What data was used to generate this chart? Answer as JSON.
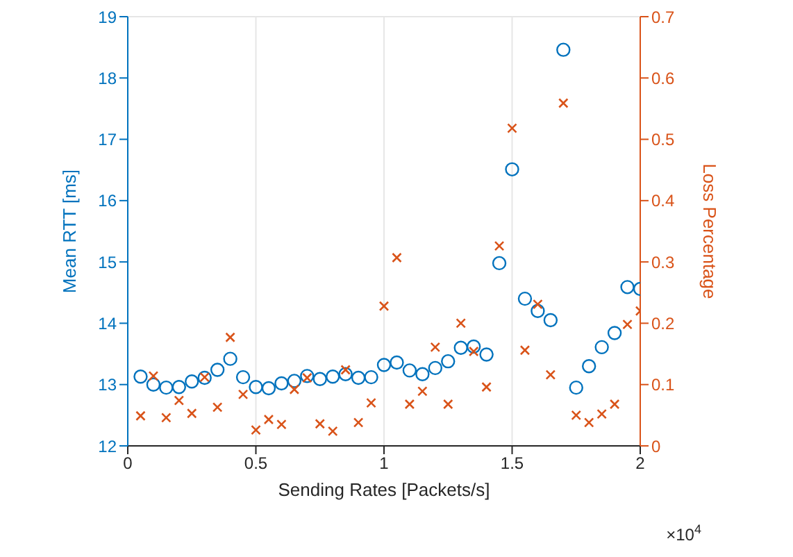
{
  "chart_data": {
    "type": "scatter",
    "xlabel": "Sending Rates [Packets/s]",
    "ylabel": "Mean RTT [ms]",
    "y2label": "Loss Percentage",
    "annotations": [
      "×10$^{4}$"
    ],
    "x": [
      0.05,
      0.1,
      0.15,
      0.2,
      0.25,
      0.3,
      0.35,
      0.4,
      0.45,
      0.5,
      0.55,
      0.6,
      0.65,
      0.7,
      0.75,
      0.8,
      0.85,
      0.9,
      0.95,
      1.0,
      1.05,
      1.1,
      1.15,
      1.2,
      1.25,
      1.3,
      1.35,
      1.4,
      1.45,
      1.5,
      1.55,
      1.6,
      1.65,
      1.7,
      1.75,
      1.8,
      1.85,
      1.9,
      1.95,
      2.0
    ],
    "series": [
      {
        "color": "#0072bd",
        "marker": "circle",
        "values": [
          13.13,
          13.0,
          12.95,
          12.96,
          13.05,
          13.11,
          13.24,
          13.42,
          13.12,
          12.96,
          12.94,
          13.02,
          13.06,
          13.14,
          13.09,
          13.13,
          13.17,
          13.11,
          13.12,
          13.32,
          13.36,
          13.23,
          13.17,
          13.27,
          13.38,
          13.6,
          13.62,
          13.49,
          14.98,
          16.51,
          14.4,
          14.2,
          14.05,
          18.46,
          12.95,
          13.3,
          13.61,
          13.84,
          14.59,
          14.56
        ]
      },
      {
        "color": "#d95319",
        "marker": "cross",
        "axis": "y2",
        "values": [
          0.049,
          0.114,
          0.046,
          0.074,
          0.053,
          0.112,
          0.063,
          0.177,
          0.084,
          0.026,
          0.043,
          0.035,
          0.092,
          0.111,
          0.036,
          0.024,
          0.124,
          0.038,
          0.07,
          0.228,
          0.307,
          0.068,
          0.089,
          0.161,
          0.068,
          0.2,
          0.154,
          0.096,
          0.326,
          0.518,
          0.156,
          0.231,
          0.116,
          0.559,
          0.05,
          0.038,
          0.052,
          0.068,
          0.198,
          0.22
        ]
      }
    ],
    "xlim": [
      0,
      2
    ],
    "xticks": [
      0,
      0.5,
      1,
      1.5,
      2
    ],
    "ylim": [
      12,
      19
    ],
    "yticks": [
      12,
      13,
      14,
      15,
      16,
      17,
      18,
      19
    ],
    "y2lim": [
      0,
      0.7
    ],
    "y2ticks": [
      0,
      0.1,
      0.2,
      0.3,
      0.4,
      0.5,
      0.6,
      0.7
    ],
    "grid": true
  }
}
